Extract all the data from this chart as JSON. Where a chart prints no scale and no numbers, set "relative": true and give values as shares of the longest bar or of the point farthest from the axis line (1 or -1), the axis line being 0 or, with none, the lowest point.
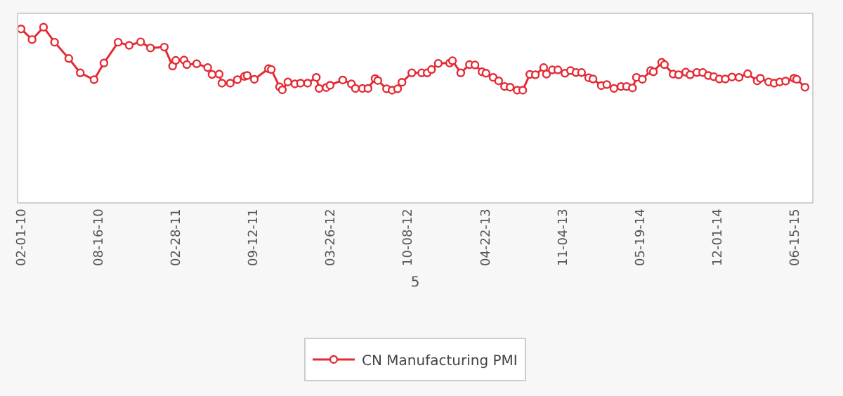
{
  "chart_data": {
    "type": "line",
    "relative": true,
    "xlabel": "5",
    "marker": "circle",
    "line_style": "solid",
    "legend": "bottom",
    "xlim": [
      "2010-01-25",
      "2015-07-29"
    ],
    "xticks": [
      {
        "value": "2010-02-01",
        "label": "02-01-10"
      },
      {
        "value": "2010-08-16",
        "label": "08-16-10"
      },
      {
        "value": "2011-02-28",
        "label": "02-28-11"
      },
      {
        "value": "2011-09-12",
        "label": "09-12-11"
      },
      {
        "value": "2012-03-26",
        "label": "03-26-12"
      },
      {
        "value": "2012-10-08",
        "label": "10-08-12"
      },
      {
        "value": "2013-04-22",
        "label": "04-22-13"
      },
      {
        "value": "2013-11-04",
        "label": "11-04-13"
      },
      {
        "value": "2014-05-19",
        "label": "05-19-14"
      },
      {
        "value": "2014-12-01",
        "label": "12-01-14"
      },
      {
        "value": "2015-06-15",
        "label": "06-15-15"
      }
    ],
    "x": [
      "2010-02-01",
      "2010-03-01",
      "2010-03-30",
      "2010-04-27",
      "2010-06-02",
      "2010-07-01",
      "2010-08-05",
      "2010-08-30",
      "2010-10-05",
      "2010-11-02",
      "2010-12-01",
      "2010-12-26",
      "2011-01-30",
      "2011-02-20",
      "2011-02-28",
      "2011-03-21",
      "2011-03-28",
      "2011-04-22",
      "2011-05-20",
      "2011-05-31",
      "2011-06-18",
      "2011-06-25",
      "2011-07-16",
      "2011-08-03",
      "2011-08-21",
      "2011-08-28",
      "2011-09-15",
      "2011-10-21",
      "2011-10-28",
      "2011-11-18",
      "2011-11-25",
      "2011-12-09",
      "2011-12-27",
      "2012-01-10",
      "2012-01-28",
      "2012-02-19",
      "2012-02-26",
      "2012-03-15",
      "2012-03-25",
      "2012-04-26",
      "2012-05-18",
      "2012-05-28",
      "2012-06-15",
      "2012-06-29",
      "2012-07-17",
      "2012-07-24",
      "2012-08-15",
      "2012-08-29",
      "2012-09-12",
      "2012-09-23",
      "2012-10-18",
      "2012-11-12",
      "2012-11-26",
      "2012-12-07",
      "2012-12-24",
      "2013-01-22",
      "2013-01-29",
      "2013-02-19",
      "2013-03-13",
      "2013-03-27",
      "2013-04-14",
      "2013-04-24",
      "2013-05-12",
      "2013-05-26",
      "2013-06-10",
      "2013-06-24",
      "2013-07-12",
      "2013-07-26",
      "2013-08-13",
      "2013-08-27",
      "2013-09-17",
      "2013-09-24",
      "2013-10-09",
      "2013-10-23",
      "2013-11-10",
      "2013-11-24",
      "2013-12-08",
      "2013-12-22",
      "2014-01-09",
      "2014-01-20",
      "2014-02-10",
      "2014-02-24",
      "2014-03-14",
      "2014-04-01",
      "2014-04-15",
      "2014-04-30",
      "2014-05-10",
      "2014-05-25",
      "2014-06-15",
      "2014-06-22",
      "2014-07-13",
      "2014-07-20",
      "2014-08-11",
      "2014-08-25",
      "2014-09-12",
      "2014-09-23",
      "2014-10-10",
      "2014-10-25",
      "2014-11-08",
      "2014-11-22",
      "2014-12-06",
      "2014-12-21",
      "2015-01-07",
      "2015-01-25",
      "2015-02-16",
      "2015-03-12",
      "2015-03-20",
      "2015-04-10",
      "2015-04-24",
      "2015-05-08",
      "2015-05-23",
      "2015-06-13",
      "2015-06-20",
      "2015-07-11"
    ],
    "series": [
      {
        "name": "CN Manufacturing PMI",
        "color": "#e32b35",
        "values": [
          0.99,
          0.929,
          1.0,
          0.914,
          0.821,
          0.739,
          0.7,
          0.795,
          0.914,
          0.896,
          0.916,
          0.881,
          0.886,
          0.778,
          0.81,
          0.812,
          0.786,
          0.791,
          0.769,
          0.73,
          0.732,
          0.68,
          0.68,
          0.7,
          0.719,
          0.724,
          0.702,
          0.763,
          0.758,
          0.659,
          0.642,
          0.687,
          0.676,
          0.68,
          0.68,
          0.713,
          0.65,
          0.655,
          0.668,
          0.698,
          0.676,
          0.65,
          0.65,
          0.65,
          0.706,
          0.695,
          0.648,
          0.64,
          0.648,
          0.685,
          0.739,
          0.739,
          0.739,
          0.758,
          0.793,
          0.795,
          0.808,
          0.739,
          0.786,
          0.784,
          0.745,
          0.737,
          0.713,
          0.693,
          0.661,
          0.657,
          0.64,
          0.64,
          0.73,
          0.728,
          0.769,
          0.732,
          0.756,
          0.756,
          0.737,
          0.752,
          0.741,
          0.741,
          0.711,
          0.704,
          0.666,
          0.672,
          0.65,
          0.661,
          0.661,
          0.653,
          0.713,
          0.702,
          0.752,
          0.745,
          0.799,
          0.786,
          0.732,
          0.728,
          0.743,
          0.728,
          0.741,
          0.741,
          0.724,
          0.717,
          0.704,
          0.704,
          0.715,
          0.713,
          0.734,
          0.693,
          0.708,
          0.687,
          0.68,
          0.687,
          0.692,
          0.708,
          0.702,
          0.657
        ]
      }
    ]
  }
}
